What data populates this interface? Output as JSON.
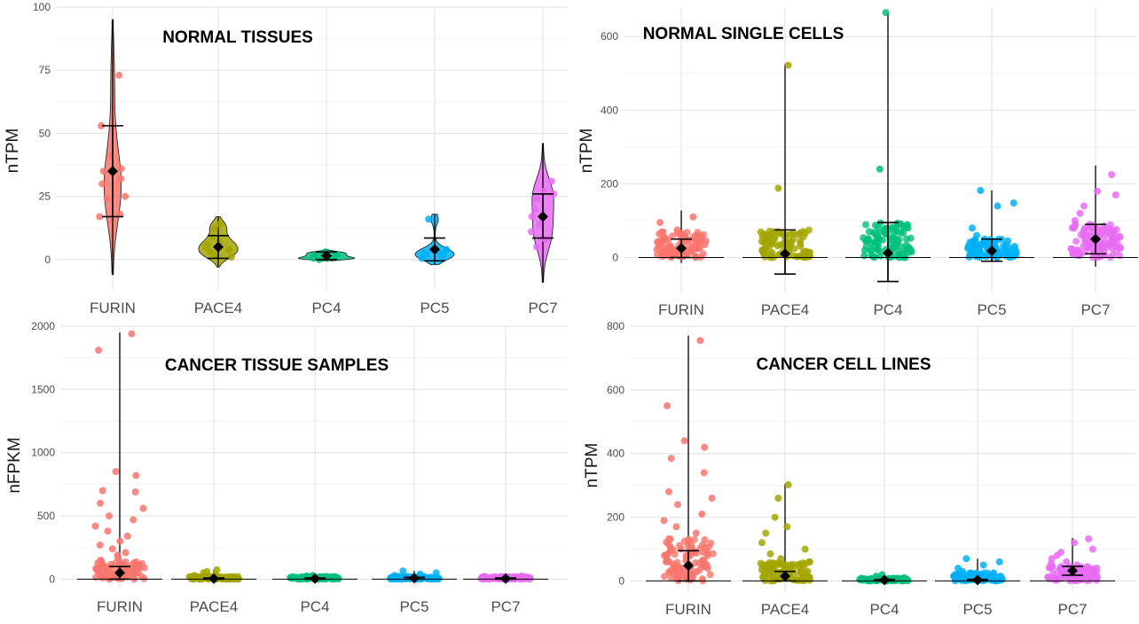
{
  "chart_data": [
    {
      "type": "violin",
      "title": "NORMAL  TISSUES",
      "xlabel": "",
      "ylabel": "nTPM",
      "ylim": [
        -12,
        100
      ],
      "yticks": [
        0,
        25,
        50,
        75,
        100
      ],
      "categories": [
        "FURIN",
        "PACE4",
        "PC4",
        "PC5",
        "PC7"
      ],
      "colors": [
        "#F8766D",
        "#A3A500",
        "#00BF7D",
        "#00B0F6",
        "#E76BF3"
      ],
      "violin": true,
      "series": [
        {
          "category": "FURIN",
          "mean": 35,
          "err_low": 17,
          "err_high": 53,
          "min": -6,
          "max": 95,
          "points": [
            73,
            53,
            41,
            36,
            35,
            32,
            30,
            25,
            24,
            18,
            17
          ]
        },
        {
          "category": "PACE4",
          "mean": 5,
          "err_low": 0.5,
          "err_high": 9.5,
          "min": -3,
          "max": 17,
          "points": [
            14,
            12,
            9,
            7,
            6,
            5,
            4,
            3,
            2,
            1
          ]
        },
        {
          "category": "PC4",
          "mean": 1.5,
          "err_low": 0,
          "err_high": 3,
          "min": -0.5,
          "max": 4,
          "points": [
            3,
            2.5,
            2,
            1.5,
            1,
            0.5,
            0.5,
            0
          ]
        },
        {
          "category": "PC5",
          "mean": 4,
          "err_low": -0.5,
          "err_high": 8.5,
          "min": -2,
          "max": 18,
          "points": [
            16,
            4,
            3,
            2.5,
            2,
            2,
            1,
            0.5
          ]
        },
        {
          "category": "PC7",
          "mean": 17,
          "err_low": 8.5,
          "err_high": 26,
          "min": -9,
          "max": 46,
          "points": [
            31,
            27,
            26,
            24,
            20,
            17,
            14,
            11,
            8,
            5
          ]
        }
      ]
    },
    {
      "type": "strip",
      "title": "NORMAL  SINGLE  CELLS",
      "xlabel": "",
      "ylabel": "nTPM",
      "ylim": [
        -95,
        680
      ],
      "yticks": [
        0,
        200,
        400,
        600
      ],
      "categories": [
        "FURIN",
        "PACE4",
        "PC4",
        "PC5",
        "PC7"
      ],
      "colors": [
        "#F8766D",
        "#A3A500",
        "#00BF7D",
        "#00B0F6",
        "#E76BF3"
      ],
      "violin": false,
      "series": [
        {
          "category": "FURIN",
          "mean": 25,
          "err_low": 0,
          "err_high": 50,
          "min": -15,
          "max": 128,
          "points": [
            110,
            95,
            75,
            60,
            50,
            45,
            40,
            35,
            30,
            25,
            22,
            20,
            18,
            15,
            12,
            10,
            8,
            6,
            5,
            3,
            2,
            1
          ]
        },
        {
          "category": "PACE4",
          "mean": 10,
          "err_low": -45,
          "err_high": 75,
          "min": -45,
          "max": 525,
          "points": [
            522,
            188,
            55,
            40,
            28,
            20,
            15,
            10,
            8,
            5,
            3,
            2,
            1,
            0
          ]
        },
        {
          "category": "PC4",
          "mean": 12,
          "err_low": -65,
          "err_high": 95,
          "min": -65,
          "max": 665,
          "points": [
            665,
            240,
            80,
            20,
            10,
            5,
            3,
            2,
            1,
            0,
            0
          ]
        },
        {
          "category": "PC5",
          "mean": 18,
          "err_low": -10,
          "err_high": 50,
          "min": -10,
          "max": 182,
          "points": [
            182,
            148,
            140,
            80,
            60,
            45,
            35,
            25,
            20,
            15,
            10,
            5,
            3,
            1
          ]
        },
        {
          "category": "PC7",
          "mean": 50,
          "err_low": 10,
          "err_high": 90,
          "min": -25,
          "max": 250,
          "points": [
            225,
            180,
            170,
            140,
            120,
            100,
            90,
            80,
            70,
            60,
            55,
            50,
            45,
            40,
            35,
            30,
            25,
            20,
            15,
            10
          ]
        }
      ]
    },
    {
      "type": "strip",
      "title": "CANCER  TISSUE  SAMPLES",
      "xlabel": "",
      "ylabel": "nFPKM",
      "ylim": [
        -60,
        2000
      ],
      "yticks": [
        0,
        500,
        1000,
        1500,
        2000
      ],
      "categories": [
        "FURIN",
        "PACE4",
        "PC4",
        "PC5",
        "PC7"
      ],
      "colors": [
        "#F8766D",
        "#A3A500",
        "#00BF7D",
        "#00B0F6",
        "#E76BF3"
      ],
      "violin": false,
      "series": [
        {
          "category": "FURIN",
          "mean": 50,
          "err_low": 0,
          "err_high": 100,
          "min": 0,
          "max": 1950,
          "points": [
            1940,
            1810,
            850,
            820,
            700,
            690,
            600,
            560,
            500,
            470,
            420,
            380,
            340,
            300,
            270,
            240,
            210,
            190,
            170,
            150,
            130,
            110,
            95,
            80,
            65,
            50,
            40,
            30,
            20,
            10,
            5
          ]
        },
        {
          "category": "PACE4",
          "mean": 5,
          "err_low": 0,
          "err_high": 10,
          "min": 0,
          "max": 75,
          "points": [
            75,
            60,
            50,
            40,
            30,
            20,
            15,
            10,
            8,
            5,
            3,
            1
          ]
        },
        {
          "category": "PC4",
          "mean": 5,
          "err_low": 0,
          "err_high": 10,
          "min": 0,
          "max": 30,
          "points": [
            30,
            25,
            20,
            15,
            10,
            8,
            5,
            3,
            1
          ]
        },
        {
          "category": "PC5",
          "mean": 8,
          "err_low": 0,
          "err_high": 15,
          "min": 0,
          "max": 65,
          "points": [
            65,
            50,
            40,
            30,
            20,
            15,
            10,
            5,
            2
          ]
        },
        {
          "category": "PC7",
          "mean": 5,
          "err_low": 0,
          "err_high": 10,
          "min": 0,
          "max": 25,
          "points": [
            25,
            20,
            15,
            10,
            8,
            5,
            3,
            1
          ]
        }
      ]
    },
    {
      "type": "strip",
      "title": "CANCER  CELL  LINES",
      "xlabel": "",
      "ylabel": "nTPM",
      "ylim": [
        -35,
        800
      ],
      "yticks": [
        0,
        200,
        400,
        600,
        800
      ],
      "categories": [
        "FURIN",
        "PACE4",
        "PC4",
        "PC5",
        "PC7"
      ],
      "colors": [
        "#F8766D",
        "#A3A500",
        "#00BF7D",
        "#00B0F6",
        "#E76BF3"
      ],
      "violin": false,
      "series": [
        {
          "category": "FURIN",
          "mean": 48,
          "err_low": 0,
          "err_high": 95,
          "min": 0,
          "max": 770,
          "points": [
            755,
            550,
            440,
            420,
            385,
            340,
            280,
            260,
            240,
            210,
            190,
            170,
            150,
            130,
            115,
            100,
            90,
            80,
            70,
            60,
            50,
            40,
            30,
            25,
            20,
            15,
            10,
            5
          ]
        },
        {
          "category": "PACE4",
          "mean": 15,
          "err_low": 0,
          "err_high": 30,
          "min": 0,
          "max": 305,
          "points": [
            302,
            260,
            200,
            170,
            150,
            120,
            100,
            85,
            70,
            60,
            50,
            40,
            30,
            25,
            20,
            15,
            10,
            5,
            2
          ]
        },
        {
          "category": "PC4",
          "mean": 3,
          "err_low": 0,
          "err_high": 5,
          "min": 0,
          "max": 20,
          "points": [
            20,
            15,
            10,
            8,
            5,
            3,
            1
          ]
        },
        {
          "category": "PC5",
          "mean": 3,
          "err_low": 0,
          "err_high": 5,
          "min": 0,
          "max": 70,
          "points": [
            70,
            60,
            50,
            40,
            30,
            25,
            20,
            15,
            10,
            5,
            2
          ]
        },
        {
          "category": "PC7",
          "mean": 32,
          "err_low": 18,
          "err_high": 46,
          "min": 0,
          "max": 135,
          "points": [
            132,
            120,
            100,
            90,
            80,
            70,
            60,
            55,
            50,
            45,
            40,
            35,
            30,
            25,
            20,
            15,
            10,
            5
          ]
        }
      ]
    }
  ]
}
